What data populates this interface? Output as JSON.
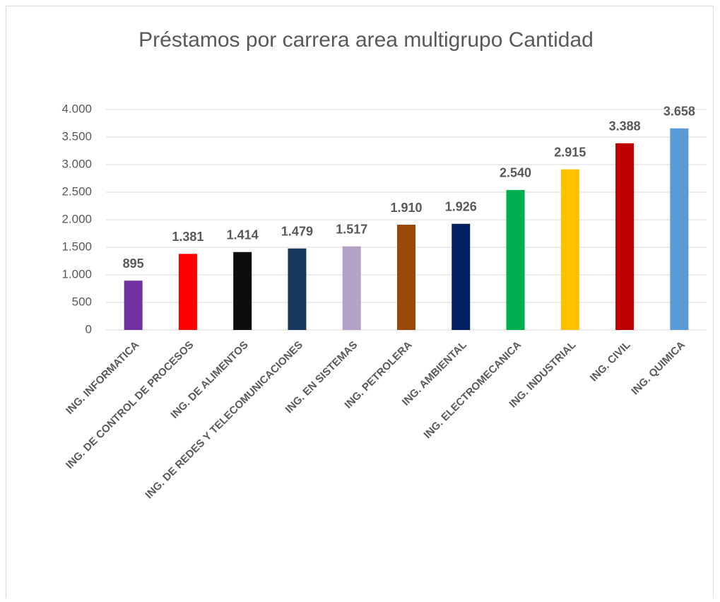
{
  "chart_data": {
    "type": "bar",
    "title": "Préstamos por carrera area multigrupo Cantidad",
    "categories": [
      "ING. INFORMATICA",
      "ING. DE CONTROL DE PROCESOS",
      "ING. DE ALIMENTOS",
      "ING. DE REDES Y TELECOMUNICACIONES",
      "ING. EN SISTEMAS",
      "ING. PETROLERA",
      "ING. AMBIENTAL",
      "ING. ELECTROMECANICA",
      "ING. INDUSTRIAL",
      "ING. CIVIL",
      "ING. QUIMICA"
    ],
    "values": [
      895,
      1381,
      1414,
      1479,
      1517,
      1910,
      1926,
      2540,
      2915,
      3388,
      3658
    ],
    "value_labels": [
      "895",
      "1.381",
      "1.414",
      "1.479",
      "1.517",
      "1.910",
      "1.926",
      "2.540",
      "2.915",
      "3.388",
      "3.658"
    ],
    "colors": [
      "#7030a0",
      "#ff0000",
      "#0d0d0d",
      "#17375e",
      "#b3a2c7",
      "#984807",
      "#002060",
      "#00b050",
      "#ffc000",
      "#c00000",
      "#5b9bd5"
    ],
    "ylim": [
      0,
      4000
    ],
    "yticks": [
      0,
      500,
      {
        "value": 1000,
        "label": "1.000"
      },
      {
        "value": 1500,
        "label": "1.500"
      },
      {
        "value": 2000,
        "label": "2.000"
      },
      {
        "value": 2500,
        "label": "2.500"
      },
      {
        "value": 3000,
        "label": "3.000"
      },
      {
        "value": 3500,
        "label": "3.500"
      },
      {
        "value": 4000,
        "label": "4.000"
      }
    ],
    "grid": true
  }
}
